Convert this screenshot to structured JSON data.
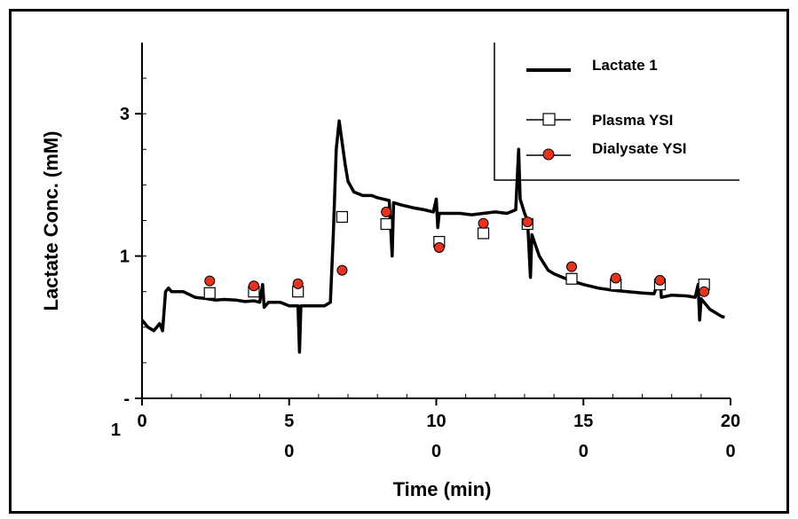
{
  "chart_data": {
    "type": "line",
    "title": "",
    "xlabel": "Time (min)",
    "ylabel": "Lactate Conc. (mM)",
    "xlim": [
      0,
      200
    ],
    "ylim": [
      -1,
      4
    ],
    "x_ticks": [
      {
        "value": 0,
        "line1": "0",
        "line2": ""
      },
      {
        "value": 50,
        "line1": "5",
        "line2": "0"
      },
      {
        "value": 100,
        "line1": "10",
        "line2": "0"
      },
      {
        "value": 150,
        "line1": "15",
        "line2": "0"
      },
      {
        "value": 200,
        "line1": "20",
        "line2": "0"
      }
    ],
    "y_ticks": [
      {
        "value": 3,
        "line1": "3",
        "line2": ""
      },
      {
        "value": 1,
        "line1": "1",
        "line2": ""
      },
      {
        "value": -1,
        "line1": "-",
        "line2": "1"
      }
    ],
    "grid": false,
    "legend_position": "top-right",
    "colors": {
      "line": "#000000",
      "plasma_marker": "#ffffff",
      "dialysate_marker": "#e8321e"
    },
    "series": [
      {
        "name": "Lactate 1",
        "kind": "line",
        "points": [
          [
            0,
            0.1
          ],
          [
            2,
            0
          ],
          [
            4,
            -0.05
          ],
          [
            6,
            0.05
          ],
          [
            7,
            -0.05
          ],
          [
            8,
            0.5
          ],
          [
            9,
            0.55
          ],
          [
            10,
            0.5
          ],
          [
            14,
            0.5
          ],
          [
            18,
            0.42
          ],
          [
            22,
            0.4
          ],
          [
            25,
            0.38
          ],
          [
            28,
            0.39
          ],
          [
            32,
            0.38
          ],
          [
            35,
            0.36
          ],
          [
            38,
            0.37
          ],
          [
            40,
            0.35
          ],
          [
            41,
            0.6
          ],
          [
            41.5,
            0.28
          ],
          [
            43,
            0.35
          ],
          [
            47,
            0.35
          ],
          [
            50,
            0.3
          ],
          [
            53,
            0.3
          ],
          [
            53.5,
            -0.35
          ],
          [
            54,
            0.3
          ],
          [
            58,
            0.3
          ],
          [
            62,
            0.3
          ],
          [
            64,
            0.35
          ],
          [
            65,
            1.3
          ],
          [
            66,
            2.5
          ],
          [
            67,
            2.9
          ],
          [
            68,
            2.6
          ],
          [
            69,
            2.3
          ],
          [
            70,
            2.05
          ],
          [
            72,
            1.9
          ],
          [
            75,
            1.85
          ],
          [
            78,
            1.85
          ],
          [
            80,
            1.82
          ],
          [
            82,
            1.8
          ],
          [
            84,
            1.78
          ],
          [
            85,
            1.0
          ],
          [
            85.5,
            1.75
          ],
          [
            88,
            1.72
          ],
          [
            92,
            1.68
          ],
          [
            96,
            1.65
          ],
          [
            99,
            1.62
          ],
          [
            100,
            1.8
          ],
          [
            100.5,
            1.4
          ],
          [
            101,
            1.6
          ],
          [
            104,
            1.6
          ],
          [
            108,
            1.6
          ],
          [
            112,
            1.58
          ],
          [
            116,
            1.6
          ],
          [
            120,
            1.62
          ],
          [
            124,
            1.6
          ],
          [
            127,
            1.65
          ],
          [
            128,
            2.5
          ],
          [
            128.5,
            1.8
          ],
          [
            130,
            1.6
          ],
          [
            131,
            1.5
          ],
          [
            132,
            0.7
          ],
          [
            132.5,
            1.3
          ],
          [
            135,
            1.0
          ],
          [
            138,
            0.8
          ],
          [
            140,
            0.75
          ],
          [
            143,
            0.7
          ],
          [
            146,
            0.65
          ],
          [
            150,
            0.6
          ],
          [
            155,
            0.55
          ],
          [
            160,
            0.52
          ],
          [
            165,
            0.5
          ],
          [
            170,
            0.48
          ],
          [
            174,
            0.47
          ],
          [
            176,
            0.7
          ],
          [
            176.5,
            0.42
          ],
          [
            180,
            0.45
          ],
          [
            185,
            0.44
          ],
          [
            188,
            0.42
          ],
          [
            189,
            0.6
          ],
          [
            189.5,
            0.1
          ],
          [
            190,
            0.4
          ],
          [
            193,
            0.25
          ],
          [
            197,
            0.15
          ],
          [
            198,
            0.14
          ]
        ]
      },
      {
        "name": "Plasma YSI",
        "kind": "scatter",
        "marker": "square",
        "points": [
          [
            23,
            0.48
          ],
          [
            38,
            0.5
          ],
          [
            53,
            0.5
          ],
          [
            68,
            1.55
          ],
          [
            83,
            1.45
          ],
          [
            101,
            1.2
          ],
          [
            116,
            1.32
          ],
          [
            131,
            1.45
          ],
          [
            146,
            0.68
          ],
          [
            161,
            0.6
          ],
          [
            176,
            0.6
          ],
          [
            191,
            0.6
          ]
        ]
      },
      {
        "name": "Dialysate YSI",
        "kind": "scatter",
        "marker": "circle",
        "points": [
          [
            23,
            0.65
          ],
          [
            38,
            0.58
          ],
          [
            53,
            0.61
          ],
          [
            68,
            0.8
          ],
          [
            83,
            1.62
          ],
          [
            101,
            1.12
          ],
          [
            116,
            1.46
          ],
          [
            131,
            1.48
          ],
          [
            146,
            0.85
          ],
          [
            161,
            0.69
          ],
          [
            176,
            0.66
          ],
          [
            191,
            0.5
          ]
        ]
      }
    ]
  }
}
